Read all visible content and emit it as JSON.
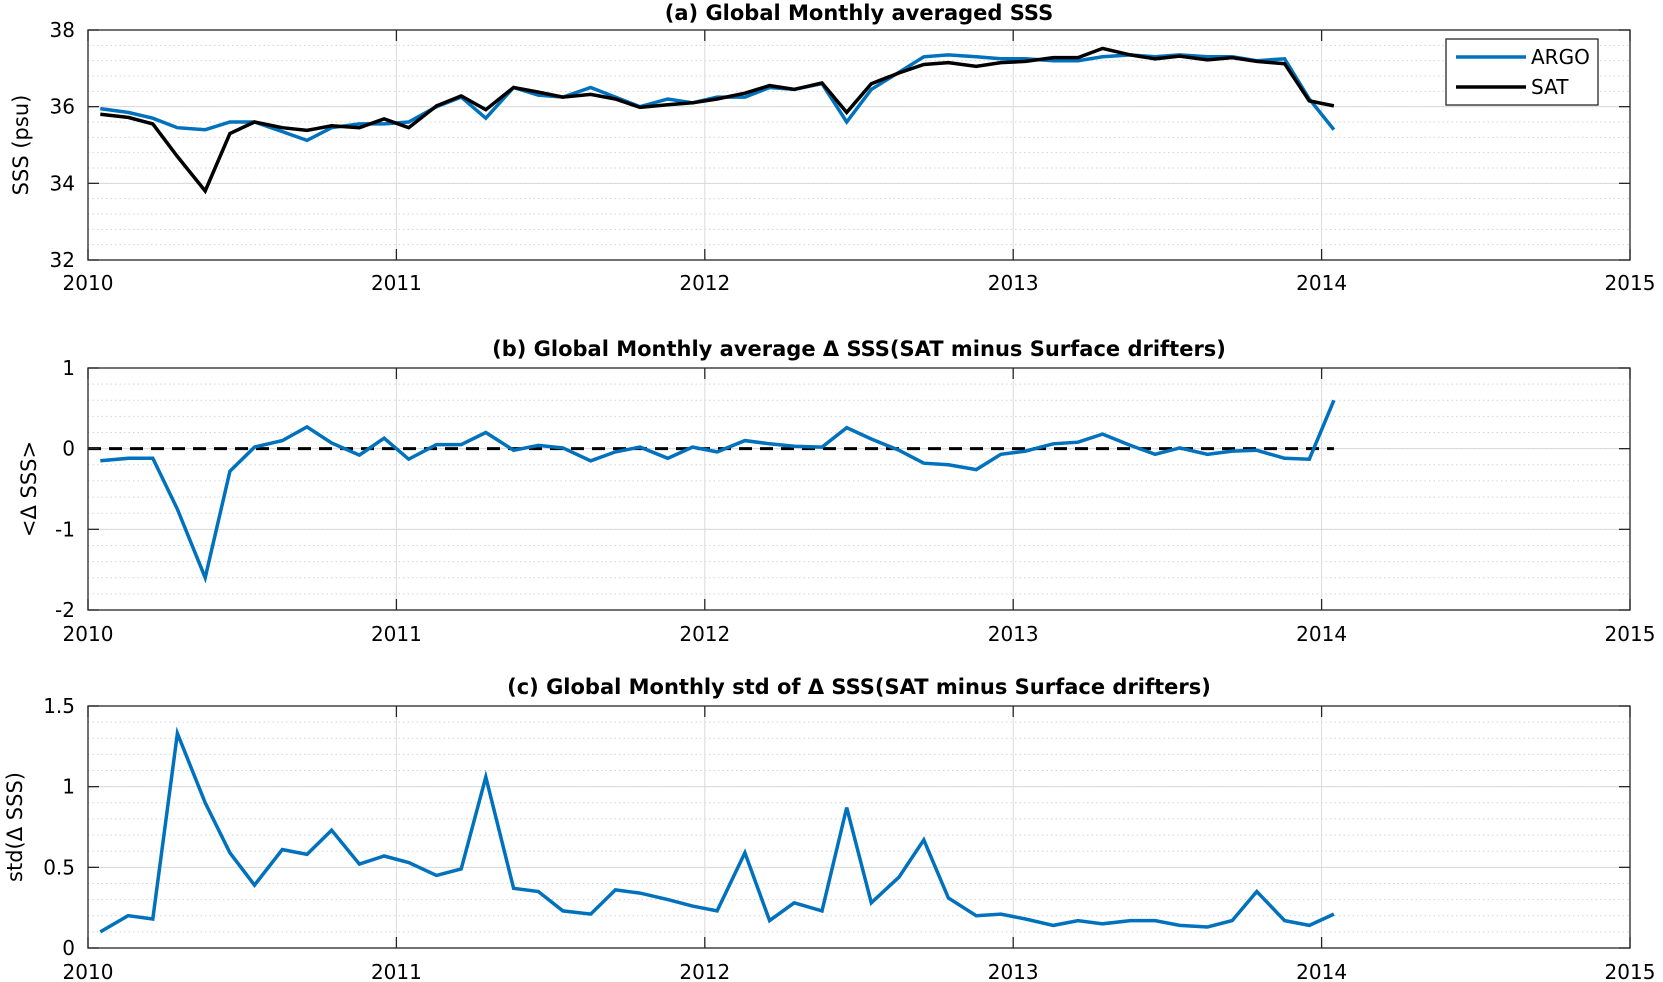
{
  "chart_data": [
    {
      "type": "line",
      "title": "(a) Global Monthly averaged SSS",
      "xlabel": "",
      "ylabel": "SSS (psu)",
      "xlim": [
        2010,
        2015
      ],
      "ylim": [
        32,
        38
      ],
      "xticks": [
        2010,
        2011,
        2012,
        2013,
        2014,
        2015
      ],
      "xtick_labels": [
        "2010",
        "2011",
        "2012",
        "2013",
        "2014",
        "2015"
      ],
      "yticks": [
        32,
        34,
        36,
        38
      ],
      "ytick_labels": [
        "32",
        "34",
        "36",
        "38"
      ],
      "grid": true,
      "legend": "top-right",
      "x": [
        2010.04,
        2010.13,
        2010.21,
        2010.29,
        2010.38,
        2010.46,
        2010.54,
        2010.63,
        2010.71,
        2010.79,
        2010.88,
        2010.96,
        2011.04,
        2011.13,
        2011.21,
        2011.29,
        2011.38,
        2011.46,
        2011.54,
        2011.63,
        2011.71,
        2011.79,
        2011.88,
        2011.96,
        2012.04,
        2012.13,
        2012.21,
        2012.29,
        2012.38,
        2012.46,
        2012.54,
        2012.63,
        2012.71,
        2012.79,
        2012.88,
        2012.96,
        2013.04,
        2013.13,
        2013.21,
        2013.29,
        2013.38,
        2013.46,
        2013.54,
        2013.63,
        2013.71,
        2013.79,
        2013.88,
        2013.96,
        2014.04
      ],
      "series": [
        {
          "name": "ARGO",
          "color": "#0072BD",
          "values": [
            35.95,
            35.85,
            35.7,
            35.45,
            35.4,
            35.6,
            35.6,
            35.35,
            35.12,
            35.45,
            35.55,
            35.55,
            35.6,
            36.0,
            36.25,
            35.7,
            36.5,
            36.3,
            36.25,
            36.5,
            36.25,
            36.0,
            36.2,
            36.1,
            36.25,
            36.25,
            36.5,
            36.45,
            36.6,
            35.6,
            36.45,
            36.9,
            37.3,
            37.35,
            37.3,
            37.25,
            37.25,
            37.2,
            37.2,
            37.3,
            37.35,
            37.3,
            37.35,
            37.3,
            37.3,
            37.2,
            37.25,
            36.2,
            35.4
          ]
        },
        {
          "name": "SAT",
          "color": "#000000",
          "values": [
            35.8,
            35.72,
            35.55,
            34.7,
            33.8,
            35.3,
            35.6,
            35.45,
            35.38,
            35.5,
            35.45,
            35.68,
            35.45,
            36.02,
            36.28,
            35.92,
            36.5,
            36.38,
            36.25,
            36.32,
            36.2,
            35.98,
            36.05,
            36.1,
            36.2,
            36.35,
            36.55,
            36.45,
            36.62,
            35.85,
            36.6,
            36.88,
            37.1,
            37.15,
            37.05,
            37.15,
            37.18,
            37.28,
            37.28,
            37.52,
            37.35,
            37.25,
            37.32,
            37.22,
            37.28,
            37.18,
            37.12,
            36.15,
            36.02
          ]
        }
      ]
    },
    {
      "type": "line",
      "title": "(b) Global Monthly average Δ SSS(SAT minus Surface drifters)",
      "xlabel": "",
      "ylabel": "<Δ SSS>",
      "xlim": [
        2010,
        2015
      ],
      "ylim": [
        -2,
        1
      ],
      "xticks": [
        2010,
        2011,
        2012,
        2013,
        2014,
        2015
      ],
      "xtick_labels": [
        "2010",
        "2011",
        "2012",
        "2013",
        "2014",
        "2015"
      ],
      "yticks": [
        -2,
        -1,
        0,
        1
      ],
      "ytick_labels": [
        "-2",
        "-1",
        "0",
        "1"
      ],
      "grid": true,
      "reference_line": 0,
      "x": [
        2010.04,
        2010.13,
        2010.21,
        2010.29,
        2010.38,
        2010.46,
        2010.54,
        2010.63,
        2010.71,
        2010.79,
        2010.88,
        2010.96,
        2011.04,
        2011.13,
        2011.21,
        2011.29,
        2011.38,
        2011.46,
        2011.54,
        2011.63,
        2011.71,
        2011.79,
        2011.88,
        2011.96,
        2012.04,
        2012.13,
        2012.21,
        2012.29,
        2012.38,
        2012.46,
        2012.54,
        2012.63,
        2012.71,
        2012.79,
        2012.88,
        2012.96,
        2013.04,
        2013.13,
        2013.21,
        2013.29,
        2013.38,
        2013.46,
        2013.54,
        2013.63,
        2013.71,
        2013.79,
        2013.88,
        2013.96,
        2014.04
      ],
      "series": [
        {
          "color": "#0072BD",
          "values": [
            -0.15,
            -0.12,
            -0.12,
            -0.75,
            -1.6,
            -0.28,
            0.02,
            0.1,
            0.27,
            0.07,
            -0.08,
            0.13,
            -0.13,
            0.05,
            0.05,
            0.2,
            -0.02,
            0.04,
            0.01,
            -0.15,
            -0.04,
            0.02,
            -0.12,
            0.02,
            -0.04,
            0.1,
            0.06,
            0.03,
            0.02,
            0.26,
            0.12,
            -0.02,
            -0.18,
            -0.2,
            -0.26,
            -0.07,
            -0.03,
            0.06,
            0.08,
            0.18,
            0.04,
            -0.07,
            0.01,
            -0.07,
            -0.03,
            -0.02,
            -0.12,
            -0.13,
            0.6
          ]
        }
      ]
    },
    {
      "type": "line",
      "title": "(c) Global Monthly std of Δ SSS(SAT minus Surface drifters)",
      "xlabel": "",
      "ylabel": "std(Δ SSS)",
      "xlim": [
        2010,
        2015
      ],
      "ylim": [
        0,
        1.5
      ],
      "xticks": [
        2010,
        2011,
        2012,
        2013,
        2014,
        2015
      ],
      "xtick_labels": [
        "2010",
        "2011",
        "2012",
        "2013",
        "2014",
        "2015"
      ],
      "yticks": [
        0,
        0.5,
        1,
        1.5
      ],
      "ytick_labels": [
        "0",
        "0.5",
        "1",
        "1.5"
      ],
      "grid": true,
      "x": [
        2010.04,
        2010.13,
        2010.21,
        2010.29,
        2010.38,
        2010.46,
        2010.54,
        2010.63,
        2010.71,
        2010.79,
        2010.88,
        2010.96,
        2011.04,
        2011.13,
        2011.21,
        2011.29,
        2011.38,
        2011.46,
        2011.54,
        2011.63,
        2011.71,
        2011.79,
        2011.88,
        2011.96,
        2012.04,
        2012.13,
        2012.21,
        2012.29,
        2012.38,
        2012.46,
        2012.54,
        2012.63,
        2012.71,
        2012.79,
        2012.88,
        2012.96,
        2013.04,
        2013.13,
        2013.21,
        2013.29,
        2013.38,
        2013.46,
        2013.54,
        2013.63,
        2013.71,
        2013.79,
        2013.88,
        2013.96,
        2014.04
      ],
      "series": [
        {
          "color": "#0072BD",
          "values": [
            0.1,
            0.2,
            0.18,
            1.33,
            0.9,
            0.59,
            0.39,
            0.61,
            0.58,
            0.73,
            0.52,
            0.57,
            0.53,
            0.45,
            0.49,
            1.06,
            0.37,
            0.35,
            0.23,
            0.21,
            0.36,
            0.34,
            0.3,
            0.26,
            0.23,
            0.59,
            0.17,
            0.28,
            0.23,
            0.87,
            0.28,
            0.44,
            0.67,
            0.31,
            0.2,
            0.21,
            0.18,
            0.14,
            0.17,
            0.15,
            0.17,
            0.17,
            0.14,
            0.13,
            0.17,
            0.35,
            0.17,
            0.14,
            0.21
          ]
        }
      ]
    }
  ]
}
